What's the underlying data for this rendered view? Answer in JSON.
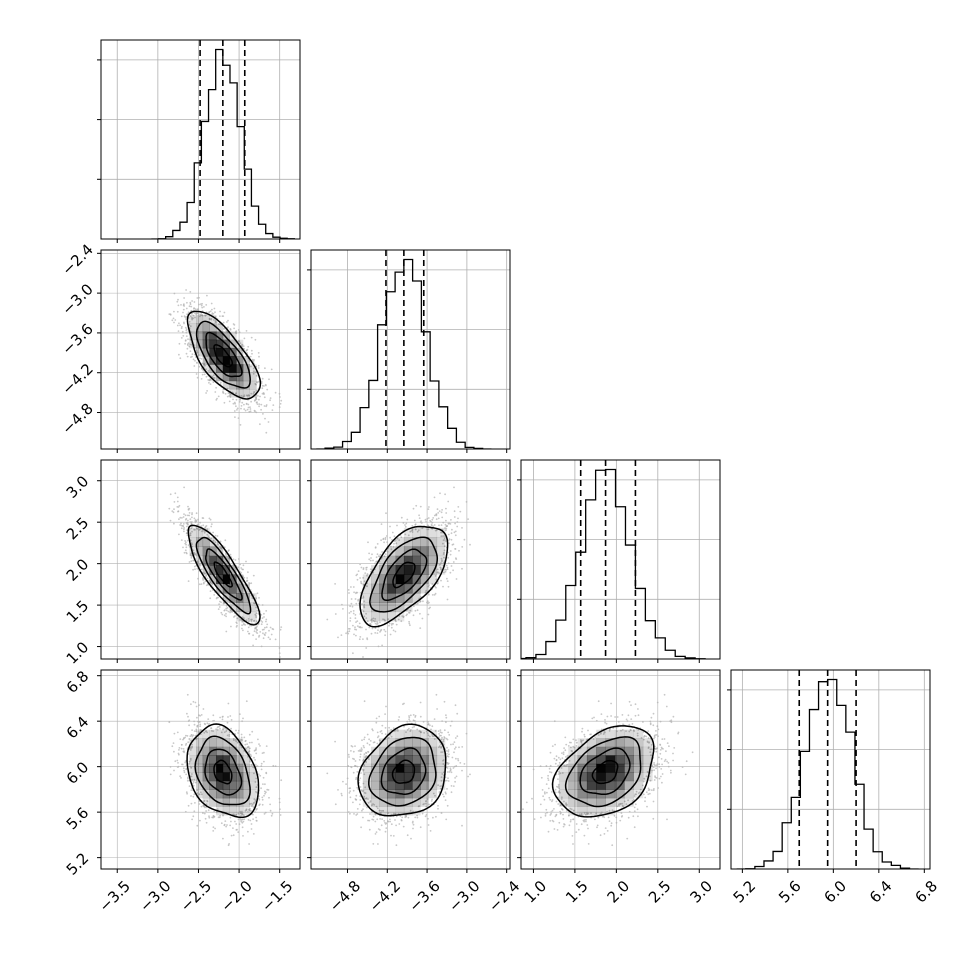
{
  "chart_data": {
    "type": "corner",
    "parameters": [
      {
        "axis_range": [
          -3.7,
          -1.25
        ],
        "ticks": [
          -3.5,
          -3.0,
          -2.5,
          -2.0,
          -1.5
        ],
        "tick_labels": [
          "−3.5",
          "−3.0",
          "−2.5",
          "−2.0",
          "−1.5"
        ],
        "mean": -2.2,
        "sd": 0.22,
        "quantiles": [
          -2.48,
          -2.2,
          -1.93
        ]
      },
      {
        "axis_range": [
          -5.35,
          -2.35
        ],
        "ticks": [
          -4.8,
          -4.2,
          -3.6,
          -3.0,
          -2.4
        ],
        "tick_labels": [
          "−4.8",
          "−4.2",
          "−3.6",
          "−3.0",
          "−2.4"
        ],
        "mean": -3.95,
        "sd": 0.33,
        "quantiles": [
          -4.22,
          -3.95,
          -3.65
        ]
      },
      {
        "axis_range": [
          0.85,
          3.25
        ],
        "ticks": [
          1.0,
          1.5,
          2.0,
          2.5,
          3.0
        ],
        "tick_labels": [
          "1.0",
          "1.5",
          "2.0",
          "2.5",
          "3.0"
        ],
        "mean": 1.87,
        "sd": 0.3,
        "quantiles": [
          1.57,
          1.87,
          2.23
        ]
      },
      {
        "axis_range": [
          5.1,
          6.85
        ],
        "ticks": [
          5.2,
          5.6,
          6.0,
          6.4,
          6.8
        ],
        "tick_labels": [
          "5.2",
          "5.6",
          "6.0",
          "6.4",
          "6.8"
        ],
        "mean": 5.95,
        "sd": 0.2,
        "quantiles": [
          5.7,
          5.95,
          6.2
        ]
      }
    ],
    "correlations": [
      [
        1.0,
        -0.7,
        -0.85,
        -0.3
      ],
      [
        -0.7,
        1.0,
        0.6,
        0.2
      ],
      [
        -0.85,
        0.6,
        1.0,
        0.35
      ],
      [
        -0.3,
        0.2,
        0.35,
        1.0
      ]
    ],
    "histogram_bins": 20,
    "contour_levels": [
      0.5,
      1.0,
      1.5,
      2.0
    ],
    "quantile_line_style": "dashed",
    "grid": true,
    "colors": {
      "contour": "#000000",
      "points": "#b0b0b0",
      "grid": "#b0b0b0",
      "density": "#000000"
    }
  }
}
